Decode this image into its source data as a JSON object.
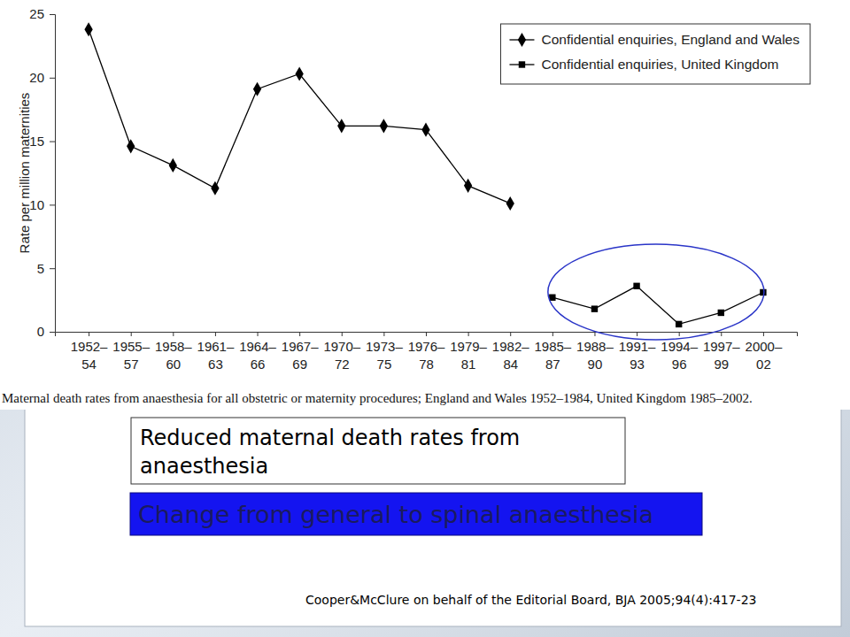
{
  "chart_data": {
    "type": "line",
    "title": "Maternal death rates from anaesthesia for all obstetric or maternity procedures; England and Wales 1952–1984, United Kingdom 1985–2002.",
    "y_label": "Rate per million maternities",
    "categories": [
      "1952–54",
      "1955–57",
      "1958–60",
      "1961–63",
      "1964–66",
      "1967–69",
      "1970–72",
      "1973–75",
      "1976–78",
      "1979–81",
      "1982–84",
      "1985–87",
      "1988–90",
      "1991–93",
      "1994–96",
      "1997–99",
      "2000–02"
    ],
    "series": [
      {
        "name": "Confidential enquiries, England and Wales",
        "color": "#000000",
        "marker": "diamond",
        "line_style": "solid",
        "values": [
          23.8,
          14.6,
          13.1,
          11.3,
          19.1,
          20.3,
          16.2,
          16.2,
          15.9,
          11.5,
          10.1,
          null,
          null,
          null,
          null,
          null,
          null
        ]
      },
      {
        "name": "Confidential enquiries, United Kingdom",
        "color": "#000000",
        "marker": "square",
        "line_style": "solid",
        "values": [
          null,
          null,
          null,
          null,
          null,
          null,
          null,
          null,
          null,
          null,
          null,
          2.7,
          1.8,
          3.6,
          0.6,
          1.5,
          3.1
        ]
      }
    ],
    "ylim": [
      0,
      25
    ],
    "yticks": [
      0,
      5,
      10,
      15,
      20,
      25
    ],
    "grid": false,
    "legend": "upper right",
    "annotations": [
      "Reduced maternal death rates from anaesthesia",
      "Change from general to spinal anaesthesia",
      "Cooper&McClure on behalf of the Editorial Board, BJA 2005;94(4):417-23"
    ]
  }
}
